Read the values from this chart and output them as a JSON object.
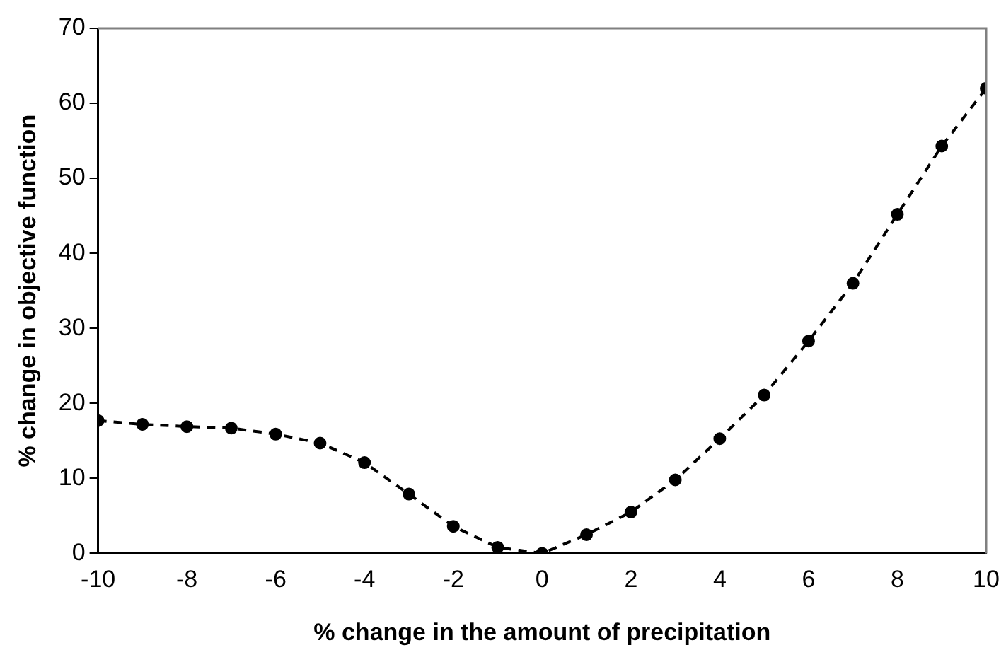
{
  "chart_data": {
    "type": "line",
    "xlabel": "% change in the amount of precipitation",
    "ylabel": "% change in objective function",
    "x": [
      -10,
      -9,
      -8,
      -7,
      -6,
      -5,
      -4,
      -3,
      -2,
      -1,
      0,
      1,
      2,
      3,
      4,
      5,
      6,
      7,
      8,
      9,
      10
    ],
    "series": [
      {
        "color": "#000000",
        "values": [
          17.7,
          17.2,
          16.9,
          16.7,
          15.9,
          14.7,
          12.1,
          7.9,
          3.6,
          0.8,
          0,
          2.5,
          5.5,
          9.8,
          15.3,
          21.1,
          28.3,
          36.0,
          45.2,
          54.3,
          62.0
        ]
      }
    ],
    "xlim": [
      -10,
      10
    ],
    "xticks": [
      -10,
      -8,
      -6,
      -4,
      -2,
      0,
      2,
      4,
      6,
      8,
      10
    ],
    "ylim": [
      0,
      70
    ],
    "yticks": [
      0,
      10,
      20,
      30,
      40,
      50,
      60,
      70
    ],
    "grid": false,
    "legend": false,
    "marker": "circle",
    "line_style": "dashed"
  }
}
